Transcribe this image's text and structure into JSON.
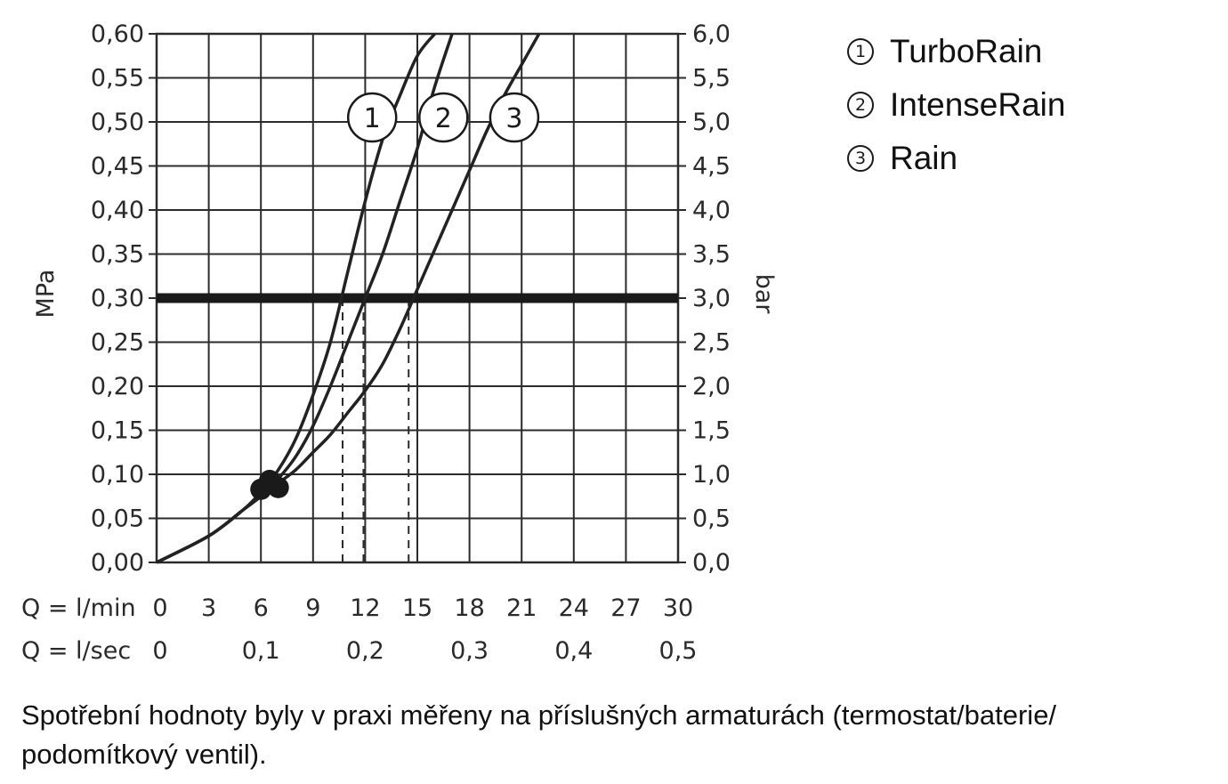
{
  "chart_data": {
    "type": "line",
    "ylabel_left": "MPa",
    "ylabel_right": "bar",
    "ylim": [
      0,
      0.6
    ],
    "xlim": [
      0,
      30
    ],
    "y_ticks_left": [
      "0,00",
      "0,05",
      "0,10",
      "0,15",
      "0,20",
      "0,25",
      "0,30",
      "0,35",
      "0,40",
      "0,45",
      "0,50",
      "0,55",
      "0,60"
    ],
    "y_ticks_right": [
      "0,0",
      "0,5",
      "1,0",
      "1,5",
      "2,0",
      "2,5",
      "3,0",
      "3,5",
      "4,0",
      "4,5",
      "5,0",
      "5,5",
      "6,0"
    ],
    "x_row_label_lmin": "Q = l/min",
    "x_ticks_lmin": [
      "0",
      "3",
      "6",
      "9",
      "12",
      "15",
      "18",
      "21",
      "24",
      "27",
      "30"
    ],
    "x_row_label_lsec": "Q = l/sec",
    "x_ticks_lsec": [
      "0",
      "0,1",
      "0,2",
      "0,3",
      "0,4",
      "0,5"
    ],
    "reference_pressure": 0.3,
    "series": [
      {
        "name": "TurboRain",
        "marker": "1",
        "x": [
          0,
          3,
          5,
          6,
          7,
          8,
          9,
          10,
          11,
          12,
          13,
          14,
          15,
          16
        ],
        "y": [
          0,
          0.03,
          0.06,
          0.08,
          0.105,
          0.14,
          0.19,
          0.25,
          0.33,
          0.41,
          0.48,
          0.53,
          0.575,
          0.6
        ],
        "flow_at_reference": 10.7
      },
      {
        "name": "IntenseRain",
        "marker": "2",
        "x": [
          0,
          3,
          5,
          6,
          7,
          8,
          9,
          10,
          11,
          12,
          13,
          14,
          15,
          16,
          17
        ],
        "y": [
          0,
          0.03,
          0.06,
          0.075,
          0.095,
          0.12,
          0.155,
          0.2,
          0.25,
          0.3,
          0.35,
          0.41,
          0.47,
          0.54,
          0.6
        ],
        "flow_at_reference": 11.9
      },
      {
        "name": "Rain",
        "marker": "3",
        "x": [
          0,
          3,
          5,
          6,
          7,
          8,
          9,
          10,
          11,
          12,
          13,
          14,
          15,
          16,
          17,
          18,
          19,
          20,
          21,
          22
        ],
        "y": [
          0,
          0.03,
          0.06,
          0.075,
          0.09,
          0.105,
          0.125,
          0.145,
          0.17,
          0.195,
          0.225,
          0.265,
          0.31,
          0.355,
          0.4,
          0.445,
          0.49,
          0.53,
          0.565,
          0.6
        ],
        "flow_at_reference": 14.5
      }
    ],
    "min_flow_markers": [
      {
        "x": 6.0,
        "y": 0.083
      },
      {
        "x": 6.5,
        "y": 0.093
      },
      {
        "x": 7.0,
        "y": 0.085
      }
    ],
    "grid": true
  },
  "legend": {
    "items": [
      {
        "marker": "1",
        "label": "TurboRain"
      },
      {
        "marker": "2",
        "label": "IntenseRain"
      },
      {
        "marker": "3",
        "label": "Rain"
      }
    ]
  },
  "note": "Spotřební hodnoty byly v praxi měřeny na příslušných armaturách (termostat/baterie/ podomítkový ventil)."
}
